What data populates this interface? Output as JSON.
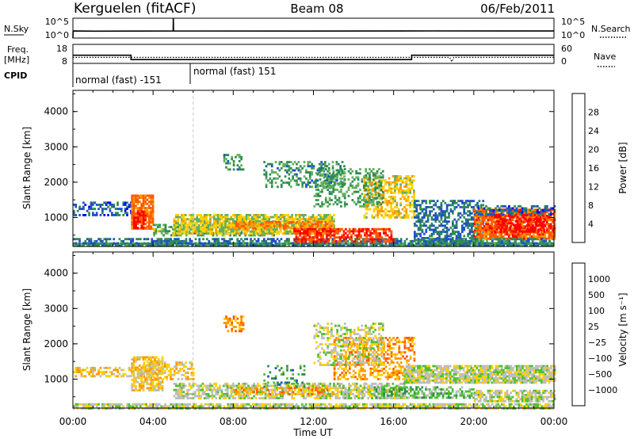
{
  "header": {
    "station": "Kerguelen (fitACF)",
    "beam": "Beam 08",
    "date": "06/Feb/2011"
  },
  "panels": {
    "nsky_label": "N.Sky",
    "nsearch_label": "N.Search",
    "freq_label_line1": "Freq.",
    "freq_label_line2": "[MHz]",
    "nave_label": "Nave",
    "cpid_label": "CPID",
    "nsky_ticks": [
      "10^5",
      "10^0"
    ],
    "nsearch_ticks": [
      "10^5",
      "10^0"
    ],
    "freq_ticks": [
      "18",
      "8"
    ],
    "nave_ticks": [
      "60",
      "0"
    ],
    "cpid_segments": [
      {
        "start_hour": 0,
        "end_hour": 6,
        "text": "normal (fast) -151"
      },
      {
        "start_hour": 6,
        "end_hour": 24,
        "text": "normal (fast) 151"
      }
    ]
  },
  "colors": {
    "frame": "#000000",
    "blank_gate": "#ffffff",
    "ground_scatter": "#bdbdbd",
    "day_boundary_line": "#c8c8c8"
  },
  "chart_data": [
    {
      "type": "line",
      "name": "nsky-nsearch",
      "x_unit": "hour UT",
      "series": [
        {
          "name": "N.Sky",
          "x": [
            0,
            0.01,
            1,
            5,
            5.01,
            5.02,
            12,
            18,
            24
          ],
          "values": [
            1,
            60,
            55,
            60,
            100000,
            60,
            58,
            62,
            60
          ],
          "style": "solid"
        },
        {
          "name": "N.Search",
          "x": [
            0,
            12,
            24
          ],
          "values": [
            60,
            60,
            60
          ],
          "style": "dotted"
        }
      ],
      "ylim": [
        1,
        100000
      ]
    },
    {
      "type": "line",
      "name": "freq-nave",
      "x_unit": "hour UT",
      "series": [
        {
          "name": "Freq",
          "x": [
            0,
            2.9,
            2.9,
            16.9,
            16.9,
            24
          ],
          "values": [
            12.3,
            12.3,
            10.0,
            10.0,
            12.3,
            12.3
          ],
          "style": "solid"
        },
        {
          "name": "Nave",
          "x": [
            0,
            12,
            18.8,
            18.9,
            19.0,
            24
          ],
          "values": [
            19,
            19,
            19,
            5,
            19,
            19
          ],
          "style": "dotted"
        }
      ],
      "ylim_freq": [
        8,
        18
      ],
      "ylim_nave": [
        0,
        60
      ]
    },
    {
      "type": "heatmap",
      "name": "power",
      "xlabel": "Time UT",
      "ylabel": "Slant Range [km]",
      "x_ticks": [
        "00:00",
        "04:00",
        "08:00",
        "12:00",
        "16:00",
        "20:00",
        "00:00"
      ],
      "x_tick_hours": [
        0,
        4,
        8,
        12,
        16,
        20,
        24
      ],
      "y_ticks": [
        1000,
        2000,
        3000,
        4000
      ],
      "xlim": [
        0,
        24
      ],
      "ylim": [
        180,
        4600
      ],
      "colorbar": {
        "label": "Power [dB]",
        "ticks": [
          4,
          8,
          12,
          16,
          20,
          24,
          28
        ],
        "range": [
          0,
          32
        ],
        "colors": [
          "#0000ff",
          "#2050c8",
          "#2e8c50",
          "#60b060",
          "#ffd000",
          "#ff9a00",
          "#ff5a00",
          "#ff0000"
        ]
      },
      "regions": [
        {
          "t": [
            0,
            24
          ],
          "r": [
            200,
            290
          ],
          "v": 10,
          "d": 0.9
        },
        {
          "t": [
            0,
            3.0
          ],
          "r": [
            1050,
            1450
          ],
          "v": 7,
          "d": 0.45
        },
        {
          "t": [
            0,
            24
          ],
          "r": [
            290,
            420
          ],
          "v": 8,
          "d": 0.55
        },
        {
          "t": [
            2.9,
            4.0
          ],
          "r": [
            700,
            1650
          ],
          "v": 24,
          "d": 0.85
        },
        {
          "t": [
            3.0,
            3.6
          ],
          "r": [
            700,
            1200
          ],
          "v": 29,
          "d": 0.6
        },
        {
          "t": [
            4.0,
            10.0
          ],
          "r": [
            500,
            820
          ],
          "v": 13,
          "d": 0.55
        },
        {
          "t": [
            5.0,
            13.0
          ],
          "r": [
            560,
            1100
          ],
          "v": 17,
          "d": 0.8
        },
        {
          "t": [
            8.0,
            13.0
          ],
          "r": [
            680,
            900
          ],
          "v": 24,
          "d": 0.6
        },
        {
          "t": [
            11.0,
            16.0
          ],
          "r": [
            330,
            700
          ],
          "v": 28,
          "d": 0.7
        },
        {
          "t": [
            14.5,
            17.0
          ],
          "r": [
            1000,
            2200
          ],
          "v": 19,
          "d": 0.55
        },
        {
          "t": [
            12.0,
            15.5
          ],
          "r": [
            1300,
            2400
          ],
          "v": 12,
          "d": 0.4
        },
        {
          "t": [
            9.5,
            13.5
          ],
          "r": [
            1850,
            2600
          ],
          "v": 11,
          "d": 0.4
        },
        {
          "t": [
            17.0,
            20.5
          ],
          "r": [
            380,
            1500
          ],
          "v": 8,
          "d": 0.55
        },
        {
          "t": [
            20.0,
            24.0
          ],
          "r": [
            400,
            1250
          ],
          "v": 26,
          "d": 0.85
        },
        {
          "t": [
            21.0,
            23.5
          ],
          "r": [
            600,
            1100
          ],
          "v": 31,
          "d": 0.6
        },
        {
          "t": [
            20.0,
            24.0
          ],
          "r": [
            1100,
            1350
          ],
          "v": 7,
          "d": 0.5
        },
        {
          "t": [
            7.5,
            8.5
          ],
          "r": [
            2350,
            2800
          ],
          "v": 11,
          "d": 0.45
        },
        {
          "t": [
            17.0,
            24.0
          ],
          "r": [
            290,
            420
          ],
          "v": 10,
          "d": 0.5
        }
      ]
    },
    {
      "type": "heatmap",
      "name": "velocity",
      "xlabel": "Time UT",
      "ylabel": "Slant Range [km]",
      "x_ticks": [
        "00:00",
        "04:00",
        "08:00",
        "12:00",
        "16:00",
        "20:00",
        "00:00"
      ],
      "x_tick_hours": [
        0,
        4,
        8,
        12,
        16,
        20,
        24
      ],
      "y_ticks": [
        1000,
        2000,
        3000,
        4000
      ],
      "xlim": [
        0,
        24
      ],
      "ylim": [
        180,
        4600
      ],
      "colorbar": {
        "label": "Velocity [m s^-1]",
        "ticks": [
          "1000",
          "500",
          "100",
          "25",
          "-25",
          "-100",
          "-500",
          "-1000"
        ],
        "colors": [
          "#0000ff",
          "#2050c8",
          "#2e8c50",
          "#50c030",
          "#bdbdbd",
          "#ffd000",
          "#ff9a00",
          "#ff5a00",
          "#ff0000"
        ]
      },
      "regions": [
        {
          "t": [
            0,
            24
          ],
          "r": [
            200,
            320
          ],
          "v": 4,
          "d": 0.8
        },
        {
          "t": [
            0,
            3.0
          ],
          "r": [
            1100,
            1350
          ],
          "v": 5,
          "d": 0.45
        },
        {
          "t": [
            2.9,
            4.5
          ],
          "r": [
            700,
            1650
          ],
          "v": 5,
          "d": 0.75
        },
        {
          "t": [
            3.5,
            6.0
          ],
          "r": [
            1000,
            1500
          ],
          "v": 5,
          "d": 0.5
        },
        {
          "t": [
            5.0,
            16.5
          ],
          "r": [
            450,
            900
          ],
          "v": 4,
          "d": 0.65
        },
        {
          "t": [
            8.0,
            13.0
          ],
          "r": [
            560,
            780
          ],
          "v": 6,
          "d": 0.4
        },
        {
          "t": [
            13.0,
            17.0
          ],
          "r": [
            1000,
            2200
          ],
          "v": 6,
          "d": 0.45
        },
        {
          "t": [
            12.0,
            15.5
          ],
          "r": [
            1400,
            2600
          ],
          "v": 4,
          "d": 0.4
        },
        {
          "t": [
            15.0,
            20.0
          ],
          "r": [
            450,
            800
          ],
          "v": 3,
          "d": 0.55
        },
        {
          "t": [
            16.5,
            24.0
          ],
          "r": [
            900,
            1400
          ],
          "v": 4,
          "d": 0.85
        },
        {
          "t": [
            20.0,
            24.0
          ],
          "r": [
            350,
            700
          ],
          "v": 4,
          "d": 0.7
        },
        {
          "t": [
            7.5,
            8.5
          ],
          "r": [
            2350,
            2800
          ],
          "v": 6,
          "d": 0.45
        },
        {
          "t": [
            9.5,
            11.5
          ],
          "r": [
            800,
            1400
          ],
          "v": 2,
          "d": 0.2
        }
      ]
    }
  ]
}
